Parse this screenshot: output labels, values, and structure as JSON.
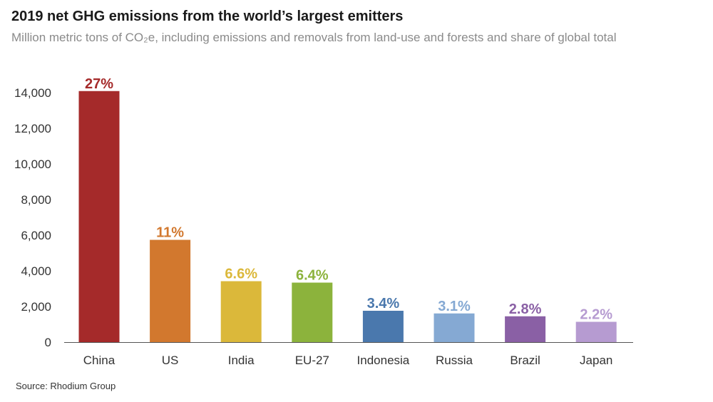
{
  "chart_data": {
    "type": "bar",
    "title": "2019 net GHG emissions from the world’s largest emitters",
    "subtitle": "Million metric tons of CO₂e, including emissions and removals from land-use and forests and share of global total",
    "source": "Source: Rhodium Group",
    "categories": [
      "China",
      "US",
      "India",
      "EU-27",
      "Indonesia",
      "Russia",
      "Brazil",
      "Japan"
    ],
    "values": [
      14090,
      5740,
      3420,
      3340,
      1760,
      1610,
      1450,
      1140
    ],
    "data_labels": [
      "27%",
      "11%",
      "6.6%",
      "6.4%",
      "3.4%",
      "3.1%",
      "2.8%",
      "2.2%"
    ],
    "colors": [
      "#a52a2a",
      "#d2782e",
      "#dbb83a",
      "#8cb33c",
      "#4a78ad",
      "#85a9d3",
      "#8a60a5",
      "#b69bd1"
    ],
    "yticks": [
      0,
      2000,
      4000,
      6000,
      8000,
      10000,
      12000,
      14000
    ],
    "ytick_labels": [
      "0",
      "2,000",
      "4,000",
      "6,000",
      "8,000",
      "10,000",
      "12,000",
      "14,000"
    ],
    "ylim": [
      0,
      14000
    ],
    "xlabel": "",
    "ylabel": "",
    "grid": false
  }
}
